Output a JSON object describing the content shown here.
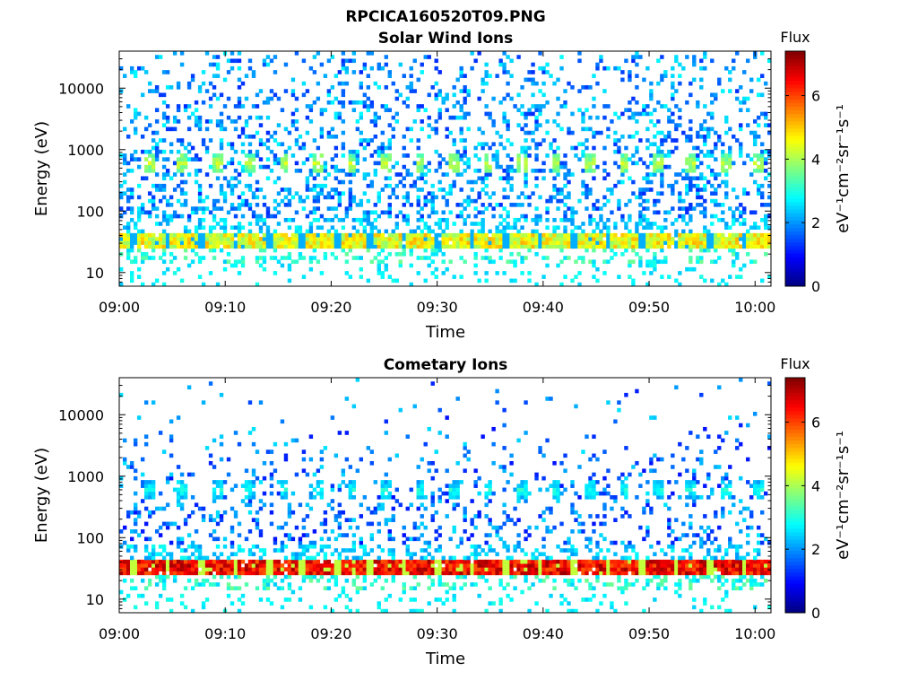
{
  "figure": {
    "title": "RPCICA160520T09.PNG"
  },
  "chart_data": [
    {
      "type": "heatmap",
      "title": "Solar Wind Ions",
      "xlabel": "Time",
      "ylabel": "Energy (eV)",
      "x_ticks": [
        "09:00",
        "09:10",
        "09:20",
        "09:30",
        "09:40",
        "09:50",
        "10:00"
      ],
      "x_range_minutes": [
        0,
        61.5
      ],
      "y_scale": "log",
      "y_ticks": [
        10,
        100,
        1000,
        10000
      ],
      "y_tick_labels": [
        "10",
        "100",
        "1000",
        "10000"
      ],
      "y_range": [
        6,
        40000
      ],
      "colorbar": {
        "label": "Flux",
        "units": "eV⁻¹cm⁻²sr⁻¹s⁻¹",
        "range": [
          0,
          7.4
        ],
        "ticks": [
          0,
          2,
          4,
          6
        ],
        "colormap": "jet"
      },
      "features": {
        "sweep_period_minutes": 3.2,
        "blob_energy_eV": 600,
        "blob_flux": 3.8,
        "band_energy_eV": [
          25,
          45
        ],
        "band_flux": 4.6,
        "background_flux": 1.2,
        "grid": false
      }
    },
    {
      "type": "heatmap",
      "title": "Cometary Ions",
      "xlabel": "Time",
      "ylabel": "Energy (eV)",
      "x_ticks": [
        "09:00",
        "09:10",
        "09:20",
        "09:30",
        "09:40",
        "09:50",
        "10:00"
      ],
      "x_range_minutes": [
        0,
        61.5
      ],
      "y_scale": "log",
      "y_ticks": [
        10,
        100,
        1000,
        10000
      ],
      "y_tick_labels": [
        "10",
        "100",
        "1000",
        "10000"
      ],
      "y_range": [
        6,
        40000
      ],
      "colorbar": {
        "label": "Flux",
        "units": "eV⁻¹cm⁻²sr⁻¹s⁻¹",
        "range": [
          0,
          7.4
        ],
        "ticks": [
          0,
          2,
          4,
          6
        ],
        "colormap": "jet"
      },
      "features": {
        "sweep_period_minutes": 3.2,
        "blob_energy_eV": 600,
        "blob_flux": 2.6,
        "band_energy_eV": [
          25,
          45
        ],
        "band_flux": 6.6,
        "background_flux": 1.0,
        "grid": false
      }
    }
  ]
}
